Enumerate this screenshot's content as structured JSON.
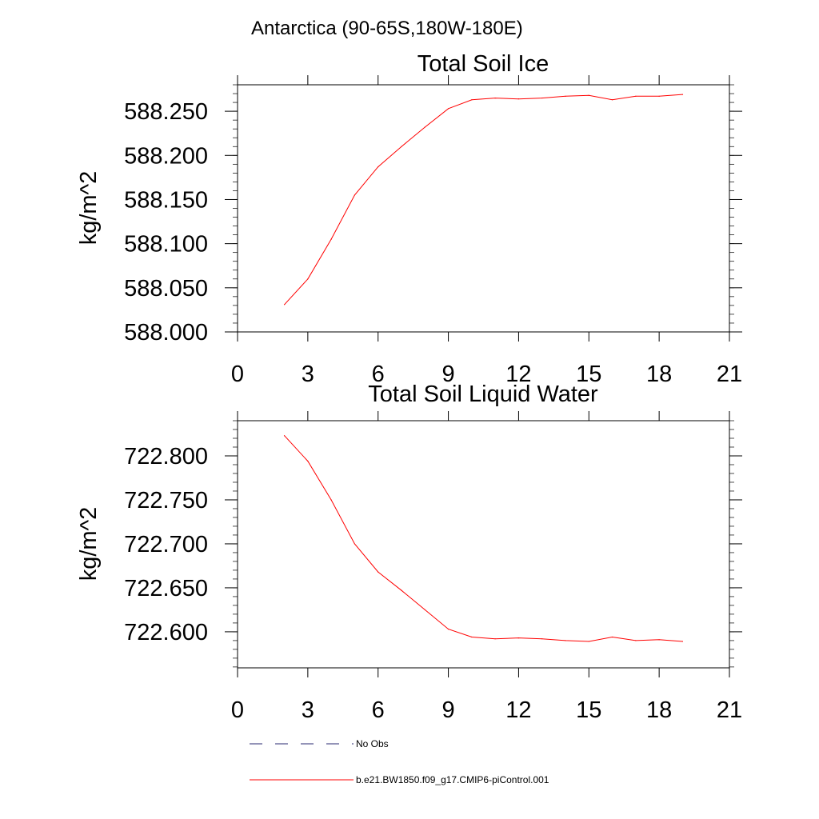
{
  "figure": {
    "region_title": "Antarctica (90-65S,180W-180E)"
  },
  "chart_data": [
    {
      "type": "line",
      "title": "Total Soil Ice",
      "xlabel": "",
      "ylabel": "kg/m^2",
      "xlim": [
        0,
        21
      ],
      "ylim": [
        588.0,
        588.28
      ],
      "xticks": [
        0,
        3,
        6,
        9,
        12,
        15,
        18,
        21
      ],
      "yticks": [
        588.0,
        588.05,
        588.1,
        588.15,
        588.2,
        588.25
      ],
      "ytick_labels": [
        "588.000",
        "588.050",
        "588.100",
        "588.150",
        "588.200",
        "588.250"
      ],
      "grid": false,
      "series": [
        {
          "name": "b.e21.BW1850.f09_g17.CMIP6-piControl.001",
          "color": "#ff0000",
          "x": [
            2,
            3,
            4,
            5,
            6,
            7,
            8,
            9,
            10,
            11,
            12,
            13,
            14,
            15,
            16,
            17,
            18,
            19
          ],
          "y": [
            588.031,
            588.06,
            588.105,
            588.155,
            588.187,
            588.21,
            588.232,
            588.253,
            588.263,
            588.265,
            588.264,
            588.265,
            588.267,
            588.268,
            588.263,
            588.267,
            588.267,
            588.269
          ]
        }
      ]
    },
    {
      "type": "line",
      "title": "Total Soil Liquid Water",
      "xlabel": "",
      "ylabel": "kg/m^2",
      "xlim": [
        0,
        21
      ],
      "ylim": [
        722.559,
        722.84
      ],
      "xticks": [
        0,
        3,
        6,
        9,
        12,
        15,
        18,
        21
      ],
      "yticks": [
        722.6,
        722.65,
        722.7,
        722.75,
        722.8
      ],
      "ytick_labels": [
        "722.600",
        "722.650",
        "722.700",
        "722.750",
        "722.800"
      ],
      "grid": false,
      "series": [
        {
          "name": "b.e21.BW1850.f09_g17.CMIP6-piControl.001",
          "color": "#ff0000",
          "x": [
            2,
            3,
            4,
            5,
            6,
            7,
            8,
            9,
            10,
            11,
            12,
            13,
            14,
            15,
            16,
            17,
            18,
            19
          ],
          "y": [
            722.823,
            722.794,
            722.75,
            722.7,
            722.668,
            722.647,
            722.625,
            722.603,
            722.594,
            722.592,
            722.593,
            722.592,
            722.59,
            722.589,
            722.594,
            722.59,
            722.591,
            722.589
          ]
        }
      ]
    }
  ],
  "legend": {
    "placement": "bottom-left",
    "entries": [
      {
        "label": "No Obs",
        "color": "#2a2a72",
        "style": "dashed"
      },
      {
        "label": "b.e21.BW1850.f09_g17.CMIP6-piControl.001",
        "color": "#ff0000",
        "style": "solid"
      }
    ]
  }
}
